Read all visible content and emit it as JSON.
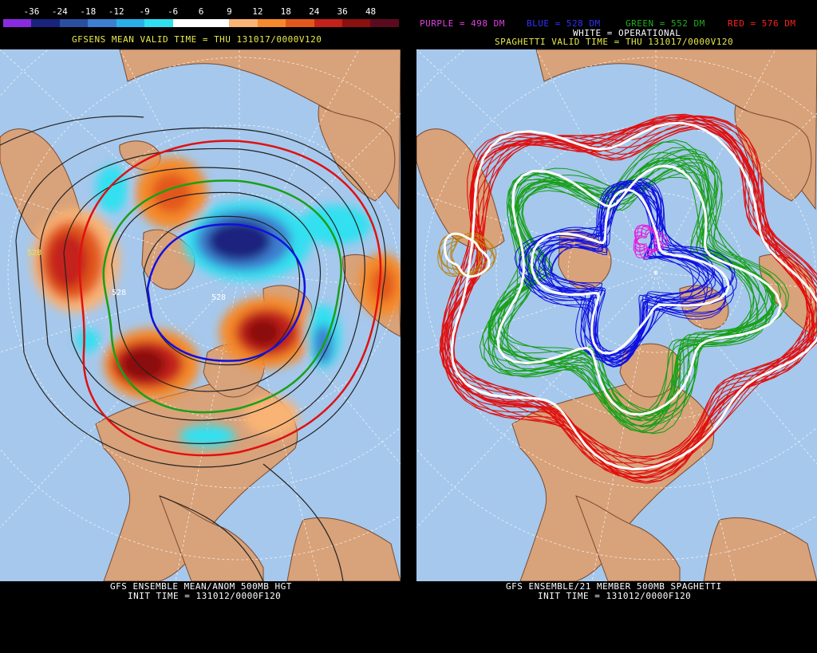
{
  "left": {
    "colorbar": {
      "labels": [
        "-36",
        "-24",
        "-18",
        "-12",
        "-9",
        "-6",
        "6",
        "9",
        "12",
        "18",
        "24",
        "36",
        "48"
      ],
      "colors": [
        "#8a2be2",
        "#1a237e",
        "#2a4fa0",
        "#3d7fd0",
        "#2ab0e8",
        "#30e0f0",
        "#ffffff",
        "#ffffff",
        "#f9b374",
        "#f58a2c",
        "#e2581a",
        "#c4211a",
        "#8b1010",
        "#5c0a20"
      ]
    },
    "title": "GFSENS MEAN VALID TIME = THU 131017/0000V120",
    "footer_line1": "GFS ENSEMBLE MEAN/ANOM 500MB HGT",
    "footer_line2": "INIT TIME = 131012/0000F120",
    "contour_labels": [
      "528",
      "528",
      "528"
    ]
  },
  "right": {
    "legend": {
      "purple": "PURPLE = 498 DM",
      "blue": "BLUE = 528 DM",
      "green": "GREEN = 552 DM",
      "red": "RED = 576 DM",
      "white": "WHITE = OPERATIONAL"
    },
    "title": "SPAGHETTI VALID TIME = THU 131017/0000V120",
    "footer_line1": "GFS ENSEMBLE/21 MEMBER 500MB SPAGHETTI",
    "footer_line2": "INIT TIME = 131012/0000F120"
  },
  "colors": {
    "ocean": "#a6c8ec",
    "land": "#d8a27a",
    "coast": "#7a4a30",
    "label_yellow": "#e8e84a"
  }
}
